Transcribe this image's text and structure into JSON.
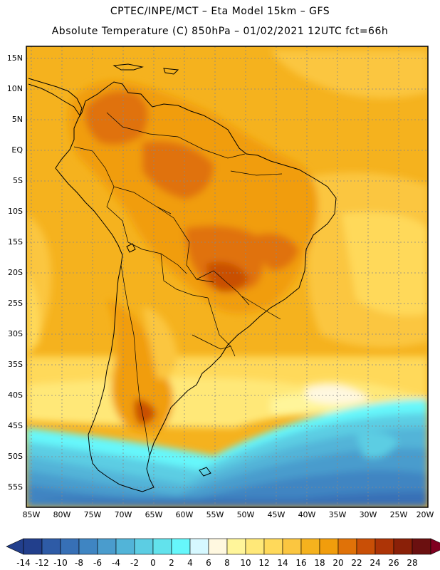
{
  "header": {
    "line1": "CPTEC/INPE/MCT –  Eta Model 15km – GFS",
    "line2": "Absolute Temperature (C) 850hPa – 01/02/2021 12UTC fct=66h"
  },
  "map": {
    "lat_labels": [
      "15N",
      "10N",
      "5N",
      "EQ",
      "5S",
      "10S",
      "15S",
      "20S",
      "25S",
      "30S",
      "35S",
      "40S",
      "45S",
      "50S",
      "55S"
    ],
    "lon_labels": [
      "85W",
      "80W",
      "75W",
      "70W",
      "65W",
      "60W",
      "55W",
      "50W",
      "45W",
      "40W",
      "35W",
      "30W",
      "25W",
      "20W"
    ]
  },
  "colorbar": {
    "labels": [
      "-14",
      "-12",
      "-10",
      "-8",
      "-6",
      "-4",
      "-2",
      "0",
      "2",
      "4",
      "6",
      "8",
      "10",
      "12",
      "14",
      "16",
      "18",
      "20",
      "22",
      "24",
      "26",
      "28"
    ],
    "colors": [
      "#223f8c",
      "#2e5ba6",
      "#3770b6",
      "#3f85c2",
      "#4a9ccd",
      "#52b4d8",
      "#5ccde3",
      "#62e2ec",
      "#66f7fb",
      "#d6f8ff",
      "#fff8e0",
      "#fff59a",
      "#ffe878",
      "#ffd95a",
      "#fbc640",
      "#f5b21e",
      "#f19d0c",
      "#e07208",
      "#c94f06",
      "#ad3406",
      "#8a2008",
      "#6b1010"
    ],
    "low_color": "#223f8c",
    "high_color": "#800020"
  }
}
